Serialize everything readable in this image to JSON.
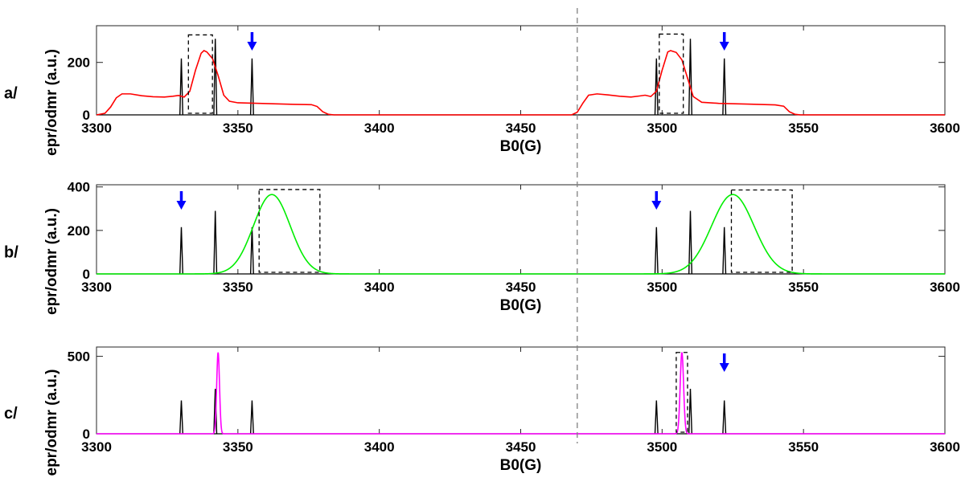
{
  "chart_data": {
    "type": "line",
    "shared_divider_x": 3470,
    "colors": {
      "epr": "#000000",
      "odmr_a": "#ff0000",
      "odmr_b": "#00ee00",
      "odmr_c": "#ff00ff",
      "arrow": "#0000ff",
      "box": "#000000",
      "divider": "#808080"
    },
    "panels": [
      {
        "label": "a/",
        "xlabel": "B0(G)",
        "ylabel": "epr/odmr (a.u.)",
        "xlim": [
          3300,
          3600
        ],
        "ylim": [
          0,
          340
        ],
        "xticks": [
          3300,
          3350,
          3400,
          3450,
          3500,
          3550,
          3600
        ],
        "yticks": [
          0,
          200
        ],
        "grid": false,
        "epr_peaks": [
          {
            "x": 3330,
            "h": 215
          },
          {
            "x": 3342,
            "h": 290
          },
          {
            "x": 3355,
            "h": 215
          },
          {
            "x": 3498,
            "h": 215
          },
          {
            "x": 3510,
            "h": 290
          },
          {
            "x": 3522,
            "h": 215
          }
        ],
        "odmr_color_key": "odmr_a",
        "odmr_curve": [
          [
            3300,
            0
          ],
          [
            3303,
            6
          ],
          [
            3305,
            30
          ],
          [
            3307,
            65
          ],
          [
            3309,
            80
          ],
          [
            3312,
            80
          ],
          [
            3316,
            73
          ],
          [
            3320,
            69
          ],
          [
            3324,
            68
          ],
          [
            3327,
            71
          ],
          [
            3329,
            74
          ],
          [
            3331,
            68
          ],
          [
            3333,
            90
          ],
          [
            3335,
            170
          ],
          [
            3337,
            235
          ],
          [
            3338,
            245
          ],
          [
            3339,
            240
          ],
          [
            3341,
            215
          ],
          [
            3343,
            150
          ],
          [
            3345,
            75
          ],
          [
            3347,
            52
          ],
          [
            3350,
            46
          ],
          [
            3360,
            43
          ],
          [
            3370,
            40
          ],
          [
            3376,
            39
          ],
          [
            3378,
            32
          ],
          [
            3380,
            12
          ],
          [
            3382,
            2
          ],
          [
            3384,
            0
          ],
          [
            3468,
            0
          ],
          [
            3470,
            10
          ],
          [
            3472,
            45
          ],
          [
            3474,
            75
          ],
          [
            3477,
            80
          ],
          [
            3481,
            76
          ],
          [
            3485,
            71
          ],
          [
            3489,
            68
          ],
          [
            3492,
            72
          ],
          [
            3494,
            75
          ],
          [
            3496,
            70
          ],
          [
            3498,
            90
          ],
          [
            3500,
            170
          ],
          [
            3502,
            240
          ],
          [
            3503,
            245
          ],
          [
            3505,
            238
          ],
          [
            3507,
            210
          ],
          [
            3509,
            140
          ],
          [
            3511,
            70
          ],
          [
            3514,
            48
          ],
          [
            3520,
            44
          ],
          [
            3530,
            41
          ],
          [
            3540,
            38
          ],
          [
            3543,
            33
          ],
          [
            3545,
            12
          ],
          [
            3547,
            2
          ],
          [
            3549,
            0
          ],
          [
            3600,
            0
          ]
        ],
        "boxes": [
          {
            "x0": 3332.5,
            "x1": 3341,
            "y0": 0,
            "y1": 305
          },
          {
            "x0": 3499,
            "x1": 3507.5,
            "y0": 0,
            "y1": 308
          }
        ],
        "arrows": [
          3355,
          3522
        ]
      },
      {
        "label": "b/",
        "xlabel": "B0(G)",
        "ylabel": "epr/odmr (a.u.)",
        "xlim": [
          3300,
          3600
        ],
        "ylim": [
          0,
          410
        ],
        "xticks": [
          3300,
          3350,
          3400,
          3450,
          3500,
          3550,
          3600
        ],
        "yticks": [
          0,
          200,
          400
        ],
        "grid": false,
        "epr_peaks": [
          {
            "x": 3330,
            "h": 215
          },
          {
            "x": 3342,
            "h": 290
          },
          {
            "x": 3355,
            "h": 215
          },
          {
            "x": 3498,
            "h": 215
          },
          {
            "x": 3510,
            "h": 290
          },
          {
            "x": 3522,
            "h": 215
          }
        ],
        "odmr_color_key": "odmr_b",
        "gaussians": [
          {
            "center": 3362,
            "sigma": 6.5,
            "amp": 365
          },
          {
            "center": 3525,
            "sigma": 7.5,
            "amp": 365
          }
        ],
        "boxes": [
          {
            "x0": 3357.5,
            "x1": 3379,
            "y0": 0,
            "y1": 388
          },
          {
            "x0": 3524.5,
            "x1": 3546,
            "y0": 0,
            "y1": 386
          }
        ],
        "arrows": [
          3330,
          3498
        ]
      },
      {
        "label": "c/",
        "xlabel": "B0(G)",
        "ylabel": "epr/odmr (a.u.)",
        "xlim": [
          3300,
          3600
        ],
        "ylim": [
          0,
          560
        ],
        "xticks": [
          3300,
          3350,
          3400,
          3450,
          3500,
          3550,
          3600
        ],
        "yticks": [
          0,
          500
        ],
        "grid": false,
        "epr_peaks": [
          {
            "x": 3330,
            "h": 215
          },
          {
            "x": 3342,
            "h": 290
          },
          {
            "x": 3355,
            "h": 215
          },
          {
            "x": 3498,
            "h": 215
          },
          {
            "x": 3510,
            "h": 290
          },
          {
            "x": 3522,
            "h": 215
          }
        ],
        "odmr_color_key": "odmr_c",
        "gaussians": [
          {
            "center": 3343,
            "sigma": 0.5,
            "amp": 525
          },
          {
            "center": 3507,
            "sigma": 0.6,
            "amp": 525
          }
        ],
        "boxes": [
          {
            "x0": 3505,
            "x1": 3509,
            "y0": 0,
            "y1": 525
          }
        ],
        "arrows": [
          3522
        ]
      }
    ]
  }
}
